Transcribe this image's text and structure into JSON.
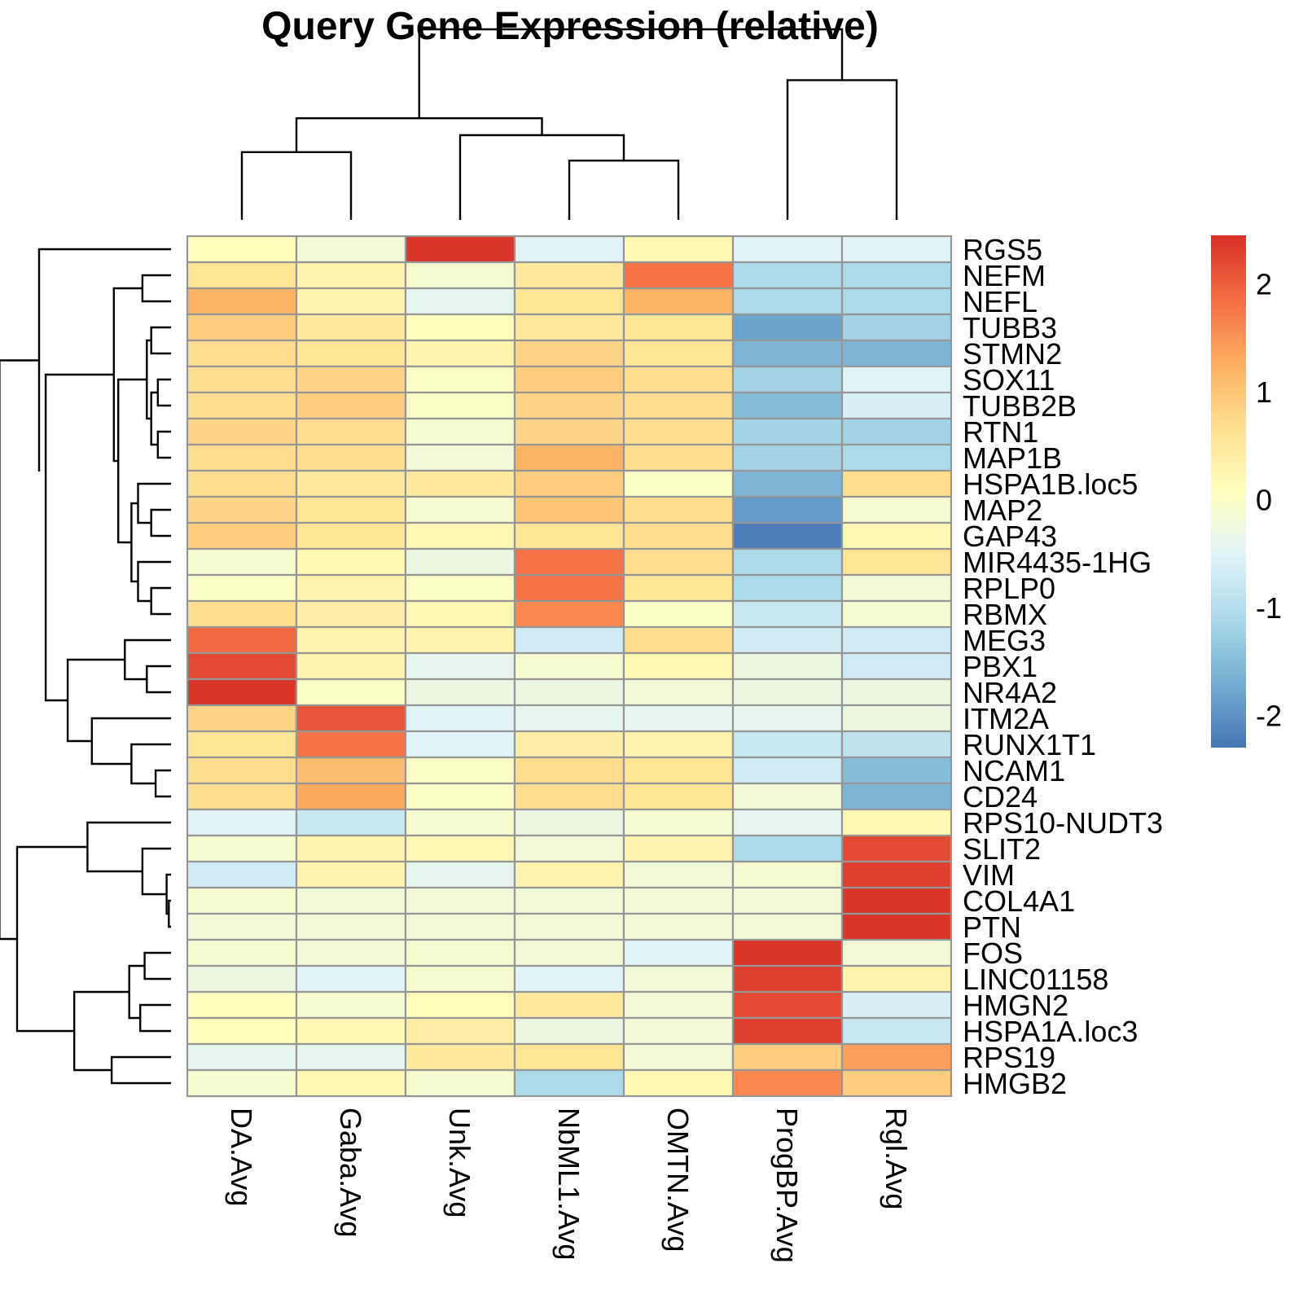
{
  "chart_data": {
    "type": "heatmap",
    "title": "Query Gene Expression (relative)",
    "columns": [
      "DA.Avg",
      "Gaba.Avg",
      "Unk.Avg",
      "NbML1.Avg",
      "OMTN.Avg",
      "ProgBP.Avg",
      "Rgl.Avg"
    ],
    "rows": [
      "RGS5",
      "NEFM",
      "NEFL",
      "TUBB3",
      "STMN2",
      "SOX11",
      "TUBB2B",
      "RTN1",
      "MAP1B",
      "HSPA1B.loc5",
      "MAP2",
      "GAP43",
      "MIR4435-1HG",
      "RPLP0",
      "RBMX",
      "MEG3",
      "PBX1",
      "NR4A2",
      "ITM2A",
      "RUNX1T1",
      "NCAM1",
      "CD24",
      "RPS10-NUDT3",
      "SLIT2",
      "VIM",
      "COL4A1",
      "PTN",
      "FOS",
      "LINC01158",
      "HMGN2",
      "HSPA1A.loc3",
      "RPS19",
      "HMGB2"
    ],
    "values": [
      [
        0.1,
        -0.2,
        2.4,
        -0.5,
        0.2,
        -0.5,
        -0.5
      ],
      [
        0.6,
        0.3,
        -0.1,
        0.5,
        1.8,
        -1.1,
        -1.1
      ],
      [
        1.2,
        0.3,
        -0.4,
        0.6,
        1.2,
        -1.1,
        -1.1
      ],
      [
        0.9,
        0.5,
        0.1,
        0.5,
        0.6,
        -1.8,
        -1.2
      ],
      [
        0.7,
        0.6,
        0.3,
        0.8,
        0.6,
        -1.6,
        -1.6
      ],
      [
        0.7,
        0.8,
        0.0,
        0.9,
        0.7,
        -1.2,
        -0.5
      ],
      [
        0.7,
        0.9,
        0.0,
        0.8,
        0.7,
        -1.5,
        -0.6
      ],
      [
        0.8,
        0.7,
        -0.1,
        0.8,
        0.7,
        -1.2,
        -1.2
      ],
      [
        0.7,
        0.7,
        -0.2,
        1.2,
        0.7,
        -1.2,
        -1.1
      ],
      [
        0.7,
        0.5,
        0.5,
        0.9,
        0.0,
        -1.6,
        0.7
      ],
      [
        0.8,
        0.6,
        -0.1,
        1.0,
        0.7,
        -1.9,
        -0.1
      ],
      [
        0.9,
        0.6,
        0.2,
        0.6,
        0.7,
        -2.2,
        0.2
      ],
      [
        -0.1,
        0.2,
        -0.3,
        1.8,
        0.7,
        -1.1,
        0.6
      ],
      [
        0.0,
        0.3,
        0.0,
        1.8,
        0.6,
        -1.1,
        -0.2
      ],
      [
        0.7,
        0.4,
        0.2,
        1.6,
        0.0,
        -0.8,
        -0.1
      ],
      [
        1.9,
        0.3,
        0.3,
        -0.7,
        0.7,
        -0.7,
        -0.7
      ],
      [
        2.2,
        0.3,
        -0.4,
        -0.1,
        0.2,
        -0.3,
        -0.7
      ],
      [
        2.4,
        0.0,
        -0.3,
        -0.3,
        -0.2,
        -0.3,
        -0.3
      ],
      [
        0.8,
        2.1,
        -0.5,
        -0.4,
        -0.4,
        -0.4,
        -0.3
      ],
      [
        0.6,
        1.8,
        -0.5,
        0.4,
        0.3,
        -0.8,
        -0.9
      ],
      [
        0.7,
        1.1,
        0.0,
        0.7,
        0.6,
        -0.7,
        -1.5
      ],
      [
        0.7,
        1.3,
        0.0,
        0.7,
        0.6,
        -0.2,
        -1.6
      ],
      [
        -0.5,
        -0.8,
        -0.1,
        -0.3,
        -0.1,
        -0.4,
        0.2
      ],
      [
        -0.1,
        0.3,
        0.2,
        -0.2,
        0.3,
        -1.1,
        2.2
      ],
      [
        -0.7,
        0.3,
        -0.4,
        0.3,
        -0.2,
        -0.1,
        2.3
      ],
      [
        -0.1,
        -0.2,
        -0.2,
        -0.2,
        -0.2,
        -0.2,
        2.4
      ],
      [
        -0.2,
        -0.2,
        -0.2,
        -0.2,
        -0.2,
        -0.2,
        2.4
      ],
      [
        -0.1,
        -0.2,
        -0.1,
        -0.2,
        -0.5,
        2.4,
        -0.2
      ],
      [
        -0.3,
        -0.5,
        -0.1,
        -0.5,
        -0.2,
        2.3,
        0.3
      ],
      [
        0.1,
        -0.1,
        0.1,
        0.5,
        -0.2,
        2.2,
        -0.6
      ],
      [
        0.1,
        0.2,
        0.4,
        -0.3,
        -0.2,
        2.3,
        -0.8
      ],
      [
        -0.4,
        -0.4,
        0.5,
        0.6,
        -0.2,
        0.9,
        1.4
      ],
      [
        -0.1,
        0.2,
        -0.1,
        -1.1,
        0.2,
        1.6,
        0.9
      ]
    ],
    "colorbar": {
      "ticks": [
        2,
        1,
        0,
        -1,
        -2
      ],
      "tick_labels": [
        "2",
        "1",
        "0",
        "-1",
        "-2"
      ],
      "min": -2.3,
      "max": 2.45
    },
    "palette": [
      "#4575b4",
      "#74add1",
      "#abd9e9",
      "#e0f3f8",
      "#ffffbf",
      "#fee090",
      "#fdae61",
      "#f46d43",
      "#d73027"
    ],
    "cell_border_color": "#969696",
    "dendrogram_color": "#000000",
    "legend_position": "right",
    "grid": false
  }
}
